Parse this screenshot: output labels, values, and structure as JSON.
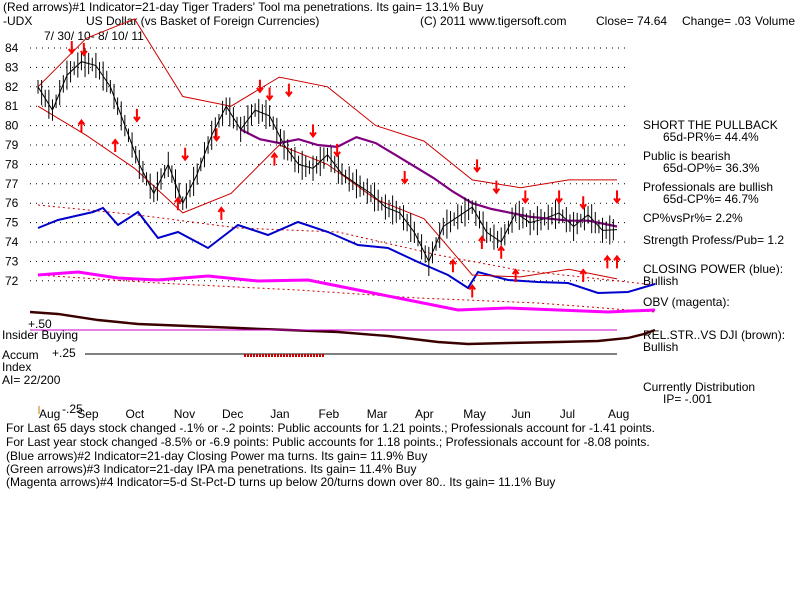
{
  "header": {
    "line1": "(Red arrows)#1 Indicator=21-day Tiger Traders' Tool ma penetrations.  Its gain= 13.1% Buy",
    "symbol": "-UDX",
    "name": "US Dollar  (vs Basket of Foreign Currencies)",
    "copyright": "(C) 2011 www.tigersoft.com",
    "close": "Close=  74.64",
    "change": "Change= .03",
    "volume": "Volume",
    "date_range": "7/ 30/ 10-  8/ 10/ 11"
  },
  "right_panel": {
    "headline": "SHORT THE PULLBACK",
    "pr": "65d-PR%= 44.4%",
    "public": "Public is bearish",
    "op": "65d-OP%= 36.3%",
    "pros": "Professionals are bullish",
    "cp": "65d-CP%= 46.7%",
    "cpvspr": "CP%vsPr%=  2.2%",
    "strength": "Strength Profess/Pub= 1.2",
    "closing_power": "CLOSING POWER (blue):",
    "closing_power_status": "Bullish",
    "obv": "OBV (magenta):",
    "relstr": "REL.STR..VS DJI (brown):",
    "relstr_status": "Bullish",
    "distribution": "Currently Distribution",
    "ip": "IP= -.001"
  },
  "left_labels": {
    "plus50": "+.50",
    "insider": "Insider Buying",
    "accum": "Accum",
    "index": "Index",
    "ai": "AI= 22/200",
    "plus25": "+.25",
    "minus25": "-.25"
  },
  "footer": {
    "line1": "For Last 65 days stock changed -.1% or -.2 points:  Public accounts for  1.21 points.;  Professionals account for -1.41 points.",
    "line2": "For Last year stock changed -8.5% or -6.9 points:  Public accounts for  1.18 points.;  Professionals account for -8.08 points.",
    "line3": "(Blue arrows)#2 Indicator=21-day Closing Power ma turns. Its gain= 11.9% Buy",
    "line4": "(Green arrows)#3 Indicator=21-day IPA ma penetrations. Its gain= 11.4% Buy",
    "line5": "(Magenta arrows)#4 Indicator=5-d St-Pct-D turns up below 20/turns down over 80..  Its gain= 11.1% Buy"
  },
  "colors": {
    "price": "#000000",
    "band": "#cc0000",
    "ma": "#800080",
    "closing_power": "#0000cc",
    "obv": "#ff00ff",
    "relstr": "#3a0000",
    "accum": "#cc0000",
    "sell_arrow": "#ff0000",
    "buy_arrow": "#ff0000"
  },
  "chart_data": {
    "type": "line",
    "ylim": [
      71,
      84
    ],
    "y_ticks": [
      84,
      83,
      82,
      81,
      80,
      79,
      78,
      77,
      76,
      75,
      74,
      73,
      72
    ],
    "month_labels": [
      "Aug",
      "Sep",
      "Oct",
      "Nov",
      "Dec",
      "Jan",
      "Feb",
      "Mar",
      "Apr",
      "May",
      "Jun",
      "Jul",
      "Aug"
    ],
    "grid": true,
    "series": [
      {
        "name": "US Dollar",
        "role": "price",
        "x": [
          0,
          0.3,
          0.6,
          0.9,
          1.2,
          1.5,
          1.8,
          2.1,
          2.4,
          2.7,
          3.0,
          3.3,
          3.6,
          3.9,
          4.2,
          4.5,
          4.8,
          5.1,
          5.4,
          5.7,
          6.0,
          6.3,
          6.6,
          6.9,
          7.2,
          7.5,
          7.8,
          8.1,
          8.4,
          8.7,
          9.0,
          9.3,
          9.6,
          9.9,
          10.2,
          10.5,
          10.8,
          11.1,
          11.4,
          11.7,
          12.0
        ],
        "values": [
          82.0,
          80.8,
          82.6,
          83.3,
          83.1,
          82.0,
          80.0,
          78.0,
          76.5,
          78.0,
          76.0,
          77.5,
          79.5,
          81.0,
          79.8,
          80.8,
          80.5,
          79.0,
          78.0,
          77.8,
          78.5,
          77.5,
          77.0,
          76.5,
          75.8,
          75.5,
          74.5,
          73.0,
          74.8,
          75.3,
          75.8,
          74.5,
          74.0,
          75.5,
          75.0,
          75.2,
          75.5,
          74.8,
          75.4,
          74.6,
          74.64
        ]
      },
      {
        "name": "upper band",
        "role": "upper",
        "x": [
          0,
          1,
          2,
          3,
          4,
          5,
          6,
          7,
          8,
          9,
          10,
          11,
          12
        ],
        "values": [
          82.0,
          84.5,
          85.5,
          81.5,
          81.0,
          82.5,
          82.0,
          80.0,
          79.2,
          77.2,
          76.8,
          77.2,
          77.2
        ]
      },
      {
        "name": "lower band",
        "role": "lower",
        "x": [
          0,
          1,
          2,
          3,
          4,
          5,
          6,
          7,
          8,
          9,
          10,
          11,
          12
        ],
        "values": [
          81.0,
          79.5,
          77.8,
          75.5,
          76.5,
          79.0,
          78.0,
          76.2,
          75.2,
          72.3,
          72.2,
          72.6,
          72.1
        ]
      },
      {
        "name": "moving average",
        "role": "ma",
        "x": [
          4.2,
          4.6,
          5.0,
          5.4,
          5.8,
          6.2,
          6.6,
          7.0,
          7.4,
          7.8,
          8.2,
          8.6,
          9.0,
          9.4,
          9.8,
          10.2,
          10.6,
          11.0,
          11.4,
          11.8,
          12.0
        ],
        "values": [
          79.8,
          79.3,
          79.1,
          79.3,
          79.0,
          78.9,
          79.4,
          79.1,
          78.5,
          77.9,
          77.3,
          76.6,
          76.0,
          75.7,
          75.5,
          75.3,
          75.2,
          75.1,
          75.1,
          74.9,
          74.8
        ]
      }
    ],
    "sell_arrows": [
      [
        0.7,
        84.0
      ],
      [
        0.95,
        83.9
      ],
      [
        2.05,
        80.5
      ],
      [
        3.05,
        78.5
      ],
      [
        3.7,
        79.5
      ],
      [
        4.6,
        82.0
      ],
      [
        4.8,
        81.6
      ],
      [
        5.2,
        81.8
      ],
      [
        5.7,
        79.7
      ],
      [
        6.2,
        78.7
      ],
      [
        7.6,
        77.3
      ],
      [
        9.1,
        77.9
      ],
      [
        9.5,
        76.8
      ],
      [
        10.1,
        76.3
      ],
      [
        10.8,
        76.3
      ],
      [
        11.3,
        76.0
      ],
      [
        12.0,
        76.3
      ]
    ],
    "buy_arrows": [
      [
        0.9,
        80.0
      ],
      [
        1.6,
        79.0
      ],
      [
        2.9,
        76.0
      ],
      [
        3.8,
        75.5
      ],
      [
        4.9,
        78.3
      ],
      [
        8.6,
        72.8
      ],
      [
        9.0,
        71.5
      ],
      [
        9.2,
        74.0
      ],
      [
        9.6,
        73.5
      ],
      [
        9.9,
        72.3
      ],
      [
        11.3,
        72.3
      ],
      [
        11.8,
        73.0
      ],
      [
        12.0,
        73.0
      ]
    ]
  }
}
